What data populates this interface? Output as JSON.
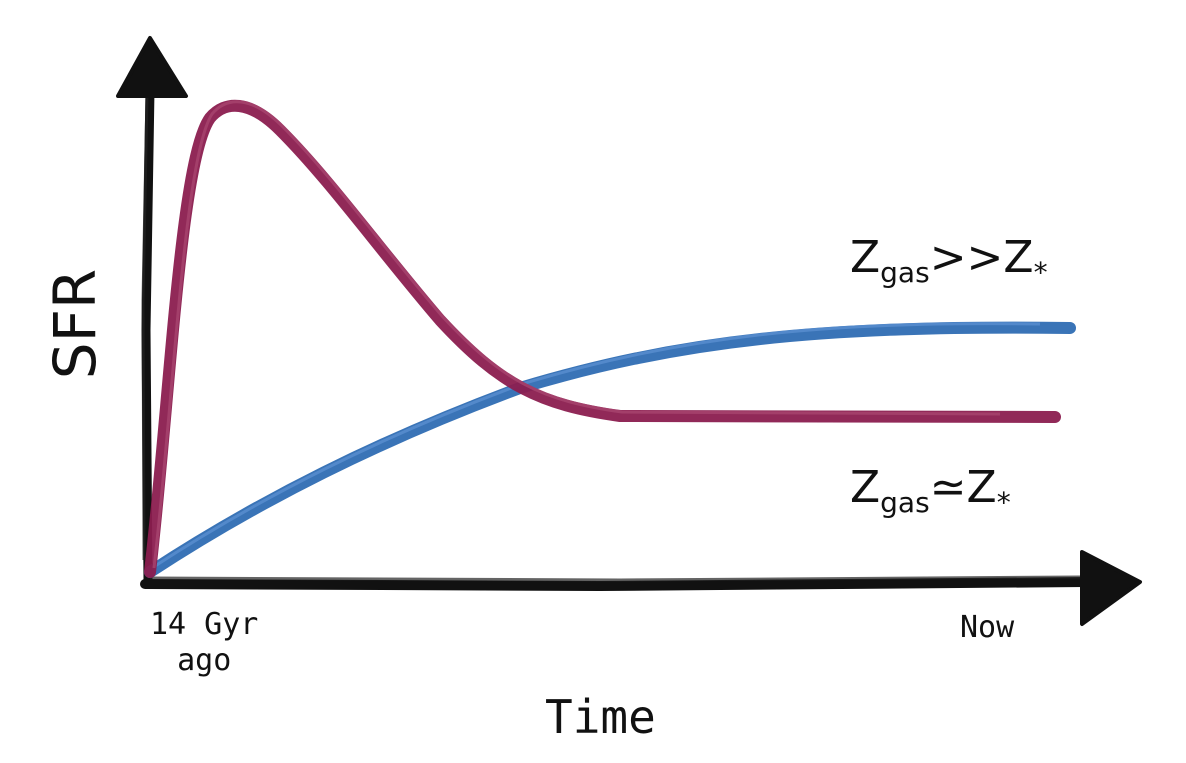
{
  "axes": {
    "y_label": "SFR",
    "x_label": "Time",
    "x_start_line1": "14 Gyr",
    "x_start_line2": "ago",
    "x_end": "Now"
  },
  "curves": [
    {
      "id": "peaked",
      "color": "#8b1e4f",
      "label_main": "Z",
      "label_sub": "gas",
      "label_rel": ">>Z",
      "label_star": "*"
    },
    {
      "id": "rising",
      "color": "#2f6db3",
      "label_main": "Z",
      "label_sub": "gas",
      "label_rel": "≃Z",
      "label_star": "*"
    }
  ]
}
